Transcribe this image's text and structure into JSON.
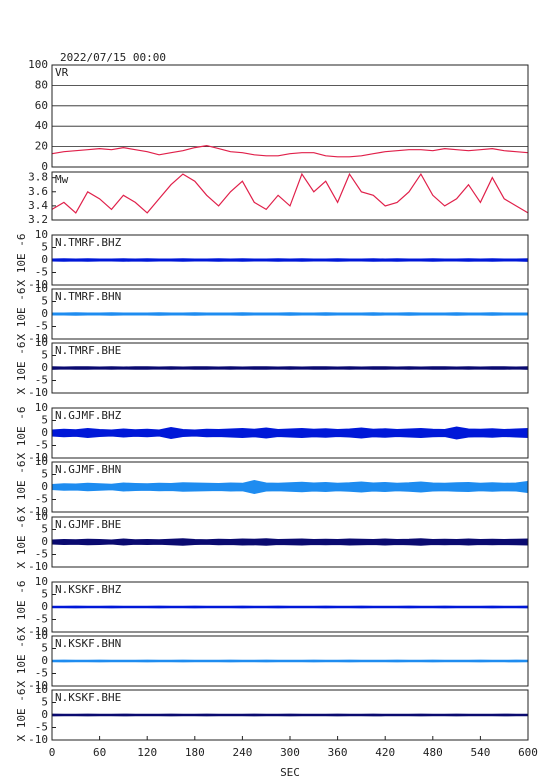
{
  "chart_data": [
    {
      "type": "line",
      "title": "2022/07/15 00:00",
      "annotation": "VR",
      "color": "#e0204a",
      "grid": true,
      "xlim": [
        0,
        600
      ],
      "ylim": [
        0,
        100
      ],
      "yticks": [
        0,
        20,
        40,
        60,
        80,
        100
      ],
      "x": [
        0,
        15,
        30,
        45,
        60,
        75,
        90,
        105,
        120,
        135,
        150,
        165,
        180,
        195,
        210,
        225,
        240,
        255,
        270,
        285,
        300,
        315,
        330,
        345,
        360,
        375,
        390,
        405,
        420,
        435,
        450,
        465,
        480,
        495,
        510,
        525,
        540,
        555,
        570,
        585,
        600
      ],
      "values": [
        13,
        15,
        16,
        17,
        18,
        17,
        19,
        17,
        15,
        12,
        14,
        16,
        19,
        21,
        18,
        15,
        14,
        12,
        11,
        11,
        13,
        14,
        14,
        11,
        10,
        10,
        11,
        13,
        15,
        16,
        17,
        17,
        16,
        18,
        17,
        16,
        17,
        18,
        16,
        15,
        14
      ]
    },
    {
      "type": "line",
      "annotation": "Mw",
      "color": "#e0204a",
      "grid": false,
      "xlim": [
        0,
        600
      ],
      "ylim": [
        3.2,
        3.88
      ],
      "yticks": [
        3.2,
        3.4,
        3.6,
        3.8
      ],
      "x": [
        0,
        15,
        30,
        45,
        60,
        75,
        90,
        105,
        120,
        135,
        150,
        165,
        180,
        195,
        210,
        225,
        240,
        255,
        270,
        285,
        300,
        315,
        330,
        345,
        360,
        375,
        390,
        405,
        420,
        435,
        450,
        465,
        480,
        495,
        510,
        525,
        540,
        555,
        570,
        585,
        600
      ],
      "values": [
        3.35,
        3.45,
        3.3,
        3.6,
        3.5,
        3.35,
        3.55,
        3.45,
        3.3,
        3.5,
        3.7,
        3.85,
        3.75,
        3.55,
        3.4,
        3.6,
        3.75,
        3.45,
        3.35,
        3.55,
        3.4,
        3.85,
        3.6,
        3.75,
        3.45,
        3.85,
        3.6,
        3.55,
        3.4,
        3.45,
        3.6,
        3.85,
        3.55,
        3.4,
        3.5,
        3.7,
        3.45,
        3.8,
        3.5,
        3.4,
        3.3
      ]
    },
    {
      "type": "area",
      "annotation": "N.TMRF.BHZ",
      "ylabel": "X 10E -6",
      "color": "#0018d8",
      "xlim": [
        0,
        600
      ],
      "ylim": [
        -10,
        10
      ],
      "yticks": [
        -10,
        -5,
        0,
        5,
        10
      ],
      "x": [
        0,
        15,
        30,
        45,
        60,
        75,
        90,
        105,
        120,
        135,
        150,
        165,
        180,
        195,
        210,
        225,
        240,
        255,
        270,
        285,
        300,
        315,
        330,
        345,
        360,
        375,
        390,
        405,
        420,
        435,
        450,
        465,
        480,
        495,
        510,
        525,
        540,
        555,
        570,
        585,
        600
      ],
      "values": [
        0.4,
        0.5,
        0.4,
        0.5,
        0.4,
        0.4,
        0.5,
        0.4,
        0.5,
        0.4,
        0.4,
        0.5,
        0.4,
        0.4,
        0.5,
        0.4,
        0.5,
        0.4,
        0.4,
        0.5,
        0.4,
        0.5,
        0.4,
        0.4,
        0.5,
        0.4,
        0.4,
        0.5,
        0.4,
        0.5,
        0.4,
        0.4,
        0.5,
        0.4,
        0.4,
        0.5,
        0.4,
        0.5,
        0.4,
        0.4,
        0.5
      ]
    },
    {
      "type": "area",
      "annotation": "N.TMRF.BHN",
      "ylabel": "X 10E -6",
      "color": "#1e8cf0",
      "xlim": [
        0,
        600
      ],
      "ylim": [
        -10,
        10
      ],
      "yticks": [
        -10,
        -5,
        0,
        5,
        10
      ],
      "x": [
        0,
        15,
        30,
        45,
        60,
        75,
        90,
        105,
        120,
        135,
        150,
        165,
        180,
        195,
        210,
        225,
        240,
        255,
        270,
        285,
        300,
        315,
        330,
        345,
        360,
        375,
        390,
        405,
        420,
        435,
        450,
        465,
        480,
        495,
        510,
        525,
        540,
        555,
        570,
        585,
        600
      ],
      "values": [
        0.4,
        0.4,
        0.5,
        0.4,
        0.4,
        0.5,
        0.4,
        0.4,
        0.4,
        0.5,
        0.4,
        0.4,
        0.5,
        0.4,
        0.4,
        0.4,
        0.5,
        0.4,
        0.4,
        0.4,
        0.5,
        0.4,
        0.4,
        0.5,
        0.4,
        0.4,
        0.4,
        0.5,
        0.4,
        0.4,
        0.5,
        0.4,
        0.4,
        0.4,
        0.5,
        0.4,
        0.4,
        0.5,
        0.4,
        0.4,
        0.4
      ]
    },
    {
      "type": "area",
      "annotation": "N.TMRF.BHE",
      "ylabel": "X 10E -6",
      "color": "#0a0a70",
      "xlim": [
        0,
        600
      ],
      "ylim": [
        -10,
        10
      ],
      "yticks": [
        -10,
        -5,
        0,
        5,
        10
      ],
      "x": [
        0,
        15,
        30,
        45,
        60,
        75,
        90,
        105,
        120,
        135,
        150,
        165,
        180,
        195,
        210,
        225,
        240,
        255,
        270,
        285,
        300,
        315,
        330,
        345,
        360,
        375,
        390,
        405,
        420,
        435,
        450,
        465,
        480,
        495,
        510,
        525,
        540,
        555,
        570,
        585,
        600
      ],
      "values": [
        0.5,
        0.4,
        0.5,
        0.5,
        0.4,
        0.5,
        0.4,
        0.5,
        0.5,
        0.4,
        0.5,
        0.4,
        0.5,
        0.5,
        0.4,
        0.5,
        0.4,
        0.5,
        0.5,
        0.4,
        0.5,
        0.4,
        0.5,
        0.5,
        0.4,
        0.5,
        0.4,
        0.5,
        0.5,
        0.4,
        0.5,
        0.4,
        0.5,
        0.5,
        0.4,
        0.5,
        0.4,
        0.5,
        0.5,
        0.4,
        0.5
      ]
    },
    {
      "type": "area",
      "annotation": "N.GJMF.BHZ",
      "ylabel": "X 10E -6",
      "color": "#0018d8",
      "xlim": [
        0,
        600
      ],
      "ylim": [
        -10,
        10
      ],
      "yticks": [
        -10,
        -5,
        0,
        5,
        10
      ],
      "x": [
        0,
        15,
        30,
        45,
        60,
        75,
        90,
        105,
        120,
        135,
        150,
        165,
        180,
        195,
        210,
        225,
        240,
        255,
        270,
        285,
        300,
        315,
        330,
        345,
        360,
        375,
        390,
        405,
        420,
        435,
        450,
        465,
        480,
        495,
        510,
        525,
        540,
        555,
        570,
        585,
        600
      ],
      "values": [
        1.2,
        1.5,
        1.3,
        1.8,
        1.4,
        1.2,
        1.6,
        1.3,
        1.5,
        1.2,
        2.2,
        1.4,
        1.2,
        1.5,
        1.4,
        1.6,
        1.8,
        1.5,
        2.0,
        1.4,
        1.6,
        1.8,
        1.5,
        1.7,
        1.4,
        1.6,
        2.0,
        1.5,
        1.7,
        1.4,
        1.6,
        1.8,
        1.5,
        1.4,
        2.4,
        1.6,
        1.5,
        1.7,
        1.4,
        1.6,
        1.8
      ]
    },
    {
      "type": "area",
      "annotation": "N.GJMF.BHN",
      "ylabel": "X 10E -6",
      "color": "#1e8cf0",
      "xlim": [
        0,
        600
      ],
      "ylim": [
        -10,
        10
      ],
      "yticks": [
        -10,
        -5,
        0,
        5,
        10
      ],
      "x": [
        0,
        15,
        30,
        45,
        60,
        75,
        90,
        105,
        120,
        135,
        150,
        165,
        180,
        195,
        210,
        225,
        240,
        255,
        270,
        285,
        300,
        315,
        330,
        345,
        360,
        375,
        390,
        405,
        420,
        435,
        450,
        465,
        480,
        495,
        510,
        525,
        540,
        555,
        570,
        585,
        600
      ],
      "values": [
        1.0,
        1.3,
        1.2,
        1.5,
        1.3,
        1.1,
        1.6,
        1.4,
        1.3,
        1.5,
        1.4,
        1.7,
        1.6,
        1.5,
        1.4,
        1.6,
        1.5,
        2.6,
        1.6,
        1.5,
        1.7,
        1.9,
        1.6,
        1.8,
        1.5,
        1.7,
        2.0,
        1.6,
        1.8,
        1.5,
        1.7,
        2.0,
        1.6,
        1.5,
        1.7,
        1.8,
        1.5,
        1.7,
        1.5,
        1.6,
        2.2
      ]
    },
    {
      "type": "area",
      "annotation": "N.GJMF.BHE",
      "ylabel": "X 10E -6",
      "color": "#0a0a70",
      "xlim": [
        0,
        600
      ],
      "ylim": [
        -10,
        10
      ],
      "yticks": [
        -10,
        -5,
        0,
        5,
        10
      ],
      "x": [
        0,
        15,
        30,
        45,
        60,
        75,
        90,
        105,
        120,
        135,
        150,
        165,
        180,
        195,
        210,
        225,
        240,
        255,
        270,
        285,
        300,
        315,
        330,
        345,
        360,
        375,
        390,
        405,
        420,
        435,
        450,
        465,
        480,
        495,
        510,
        525,
        540,
        555,
        570,
        585,
        600
      ],
      "values": [
        0.8,
        1.0,
        0.9,
        1.1,
        1.0,
        0.8,
        1.2,
        0.9,
        1.0,
        0.9,
        1.1,
        1.3,
        1.0,
        0.9,
        1.1,
        1.0,
        1.2,
        1.1,
        1.3,
        1.0,
        1.1,
        1.2,
        1.0,
        1.1,
        1.0,
        1.2,
        1.1,
        1.0,
        1.2,
        1.0,
        1.1,
        1.3,
        1.0,
        1.1,
        1.0,
        1.2,
        1.0,
        1.1,
        1.0,
        1.1,
        1.2
      ]
    },
    {
      "type": "area",
      "annotation": "N.KSKF.BHZ",
      "ylabel": "X 10E -6",
      "color": "#0018d8",
      "xlim": [
        0,
        600
      ],
      "ylim": [
        -10,
        10
      ],
      "yticks": [
        -10,
        -5,
        0,
        5,
        10
      ],
      "x": [
        0,
        15,
        30,
        45,
        60,
        75,
        90,
        105,
        120,
        135,
        150,
        165,
        180,
        195,
        210,
        225,
        240,
        255,
        270,
        285,
        300,
        315,
        330,
        345,
        360,
        375,
        390,
        405,
        420,
        435,
        450,
        465,
        480,
        495,
        510,
        525,
        540,
        555,
        570,
        585,
        600
      ],
      "values": [
        0.3,
        0.3,
        0.35,
        0.3,
        0.3,
        0.35,
        0.3,
        0.3,
        0.3,
        0.35,
        0.3,
        0.3,
        0.35,
        0.3,
        0.3,
        0.3,
        0.35,
        0.3,
        0.3,
        0.35,
        0.3,
        0.3,
        0.3,
        0.35,
        0.3,
        0.3,
        0.35,
        0.3,
        0.3,
        0.3,
        0.35,
        0.3,
        0.3,
        0.35,
        0.3,
        0.3,
        0.3,
        0.35,
        0.3,
        0.3,
        0.35
      ]
    },
    {
      "type": "area",
      "annotation": "N.KSKF.BHN",
      "ylabel": "X 10E -6",
      "color": "#1e8cf0",
      "xlim": [
        0,
        600
      ],
      "ylim": [
        -10,
        10
      ],
      "yticks": [
        -10,
        -5,
        0,
        5,
        10
      ],
      "x": [
        0,
        15,
        30,
        45,
        60,
        75,
        90,
        105,
        120,
        135,
        150,
        165,
        180,
        195,
        210,
        225,
        240,
        255,
        270,
        285,
        300,
        315,
        330,
        345,
        360,
        375,
        390,
        405,
        420,
        435,
        450,
        465,
        480,
        495,
        510,
        525,
        540,
        555,
        570,
        585,
        600
      ],
      "values": [
        0.3,
        0.35,
        0.3,
        0.3,
        0.35,
        0.3,
        0.3,
        0.3,
        0.35,
        0.3,
        0.3,
        0.35,
        0.3,
        0.3,
        0.3,
        0.35,
        0.3,
        0.3,
        0.35,
        0.3,
        0.3,
        0.3,
        0.35,
        0.3,
        0.3,
        0.35,
        0.3,
        0.3,
        0.3,
        0.35,
        0.3,
        0.3,
        0.35,
        0.3,
        0.3,
        0.3,
        0.35,
        0.3,
        0.3,
        0.35,
        0.3
      ]
    },
    {
      "type": "area",
      "annotation": "N.KSKF.BHE",
      "ylabel": "X 10E -6",
      "color": "#0a0a70",
      "xlim": [
        0,
        600
      ],
      "ylim": [
        -10,
        10
      ],
      "yticks": [
        -10,
        -5,
        0,
        5,
        10
      ],
      "x": [
        0,
        15,
        30,
        45,
        60,
        75,
        90,
        105,
        120,
        135,
        150,
        165,
        180,
        195,
        210,
        225,
        240,
        255,
        270,
        285,
        300,
        315,
        330,
        345,
        360,
        375,
        390,
        405,
        420,
        435,
        450,
        465,
        480,
        495,
        510,
        525,
        540,
        555,
        570,
        585,
        600
      ],
      "values": [
        0.35,
        0.3,
        0.3,
        0.35,
        0.3,
        0.3,
        0.35,
        0.3,
        0.3,
        0.3,
        0.35,
        0.3,
        0.3,
        0.35,
        0.3,
        0.3,
        0.3,
        0.35,
        0.3,
        0.3,
        0.35,
        0.3,
        0.3,
        0.3,
        0.35,
        0.3,
        0.3,
        0.35,
        0.3,
        0.3,
        0.3,
        0.35,
        0.3,
        0.3,
        0.35,
        0.3,
        0.3,
        0.3,
        0.35,
        0.3,
        0.3
      ],
      "xlabel": "SEC",
      "xticks": [
        0,
        60,
        120,
        180,
        240,
        300,
        360,
        420,
        480,
        540,
        600
      ]
    }
  ]
}
